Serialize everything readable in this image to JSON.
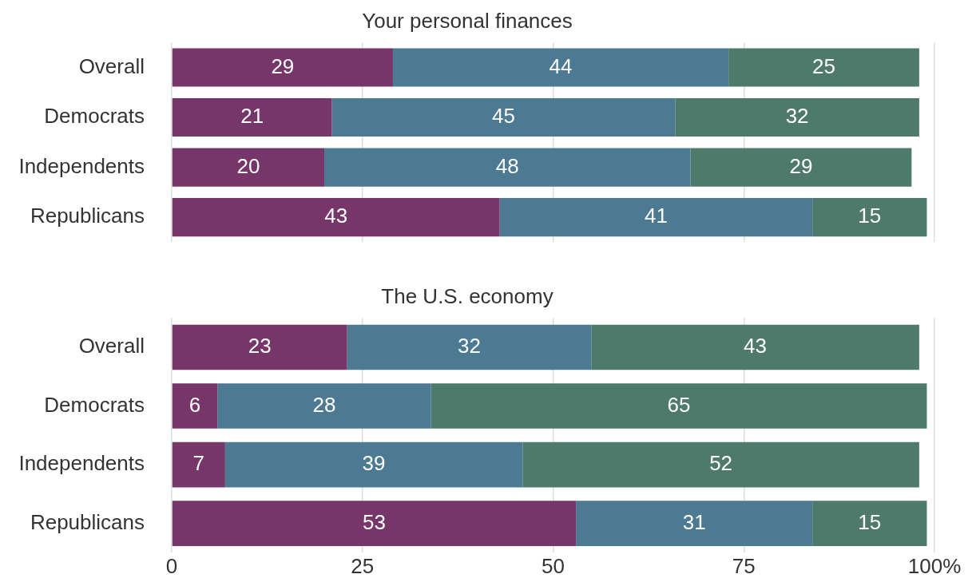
{
  "chart_data": [
    {
      "type": "bar",
      "orientation": "horizontal",
      "stacked": true,
      "title": "Your personal finances",
      "categories": [
        "Overall",
        "Democrats",
        "Independents",
        "Republicans"
      ],
      "series": [
        {
          "color": "#76366a",
          "values": [
            29,
            21,
            20,
            43
          ]
        },
        {
          "color": "#4d7a93",
          "values": [
            44,
            45,
            48,
            41
          ]
        },
        {
          "color": "#4e7a6c",
          "values": [
            25,
            32,
            29,
            15
          ]
        }
      ],
      "xlim": [
        0,
        100
      ],
      "xticks": [
        0,
        25,
        50,
        75,
        100
      ],
      "grid": "x",
      "tick_labels": "y",
      "data_labels": true
    },
    {
      "type": "bar",
      "orientation": "horizontal",
      "stacked": true,
      "title": "The U.S. economy",
      "categories": [
        "Overall",
        "Democrats",
        "Independents",
        "Republicans"
      ],
      "series": [
        {
          "color": "#76366a",
          "values": [
            23,
            6,
            7,
            53
          ]
        },
        {
          "color": "#4d7a93",
          "values": [
            32,
            28,
            39,
            31
          ]
        },
        {
          "color": "#4e7a6c",
          "values": [
            43,
            65,
            52,
            15
          ]
        }
      ],
      "xlim": [
        0,
        100
      ],
      "xticks": [
        0,
        25,
        50,
        75,
        {
          "value": 100,
          "label": "100%"
        }
      ],
      "grid": "x",
      "data_labels": true
    }
  ]
}
